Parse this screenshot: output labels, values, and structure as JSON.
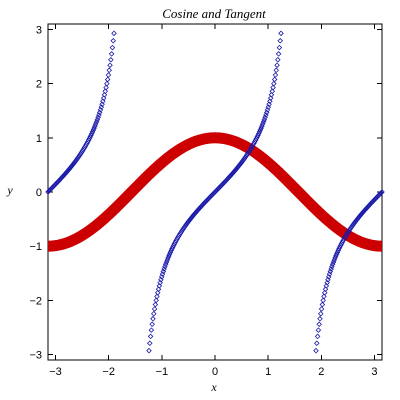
{
  "chart_data": {
    "type": "scatter",
    "title": "Cosine and Tangent",
    "xlabel": "x",
    "ylabel": "y",
    "xlim": [
      -3.14159,
      3.14159
    ],
    "ylim": [
      -3.1,
      3.1
    ],
    "xticks": [
      -3,
      -2,
      -1,
      0,
      1,
      2,
      3
    ],
    "xtick_labels": [
      "−3",
      "−2",
      "−1",
      "0",
      "1",
      "2",
      "3"
    ],
    "yticks": [
      -3,
      -2,
      -1,
      0,
      1,
      2,
      3
    ],
    "ytick_labels": [
      "−3",
      "−2",
      "−1",
      "0",
      "1",
      "2",
      "3"
    ],
    "grid": false,
    "series": [
      {
        "function": "cos(x)",
        "style": "thick-line",
        "color": "#cc0000",
        "x_range": [
          -3.14159,
          3.14159
        ]
      },
      {
        "function": "tan(x)",
        "style": "diamond-points",
        "color": "#1a1aaa",
        "x_range": [
          -3.14159,
          3.14159
        ],
        "y_clip": [
          -3,
          3
        ]
      }
    ]
  }
}
